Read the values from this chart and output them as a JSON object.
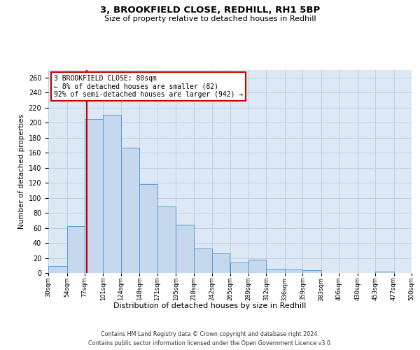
{
  "title1": "3, BROOKFIELD CLOSE, REDHILL, RH1 5BP",
  "title2": "Size of property relative to detached houses in Redhill",
  "xlabel": "Distribution of detached houses by size in Redhill",
  "ylabel": "Number of detached properties",
  "footnote1": "Contains HM Land Registry data © Crown copyright and database right 2024.",
  "footnote2": "Contains public sector information licensed under the Open Government Licence v3.0.",
  "bin_edges": [
    30,
    54,
    77,
    101,
    124,
    148,
    171,
    195,
    218,
    242,
    265,
    289,
    312,
    336,
    359,
    383,
    406,
    430,
    453,
    477,
    500
  ],
  "bar_values": [
    9,
    62,
    205,
    210,
    167,
    118,
    88,
    64,
    33,
    26,
    14,
    18,
    6,
    5,
    4,
    0,
    0,
    0,
    2,
    0
  ],
  "bar_color": "#c5d8ed",
  "bar_edge_color": "#5b9bd5",
  "property_size": 80,
  "property_label": "3 BROOKFIELD CLOSE: 80sqm",
  "annotation_line1": "← 8% of detached houses are smaller (82)",
  "annotation_line2": "92% of semi-detached houses are larger (942) →",
  "vline_color": "#cc0000",
  "annotation_box_color": "#ffffff",
  "annotation_box_edge": "#cc0000",
  "grid_color": "#c0cfe0",
  "background_color": "#dce9f5",
  "ylim": [
    0,
    270
  ],
  "yticks": [
    0,
    20,
    40,
    60,
    80,
    100,
    120,
    140,
    160,
    180,
    200,
    220,
    240,
    260
  ]
}
